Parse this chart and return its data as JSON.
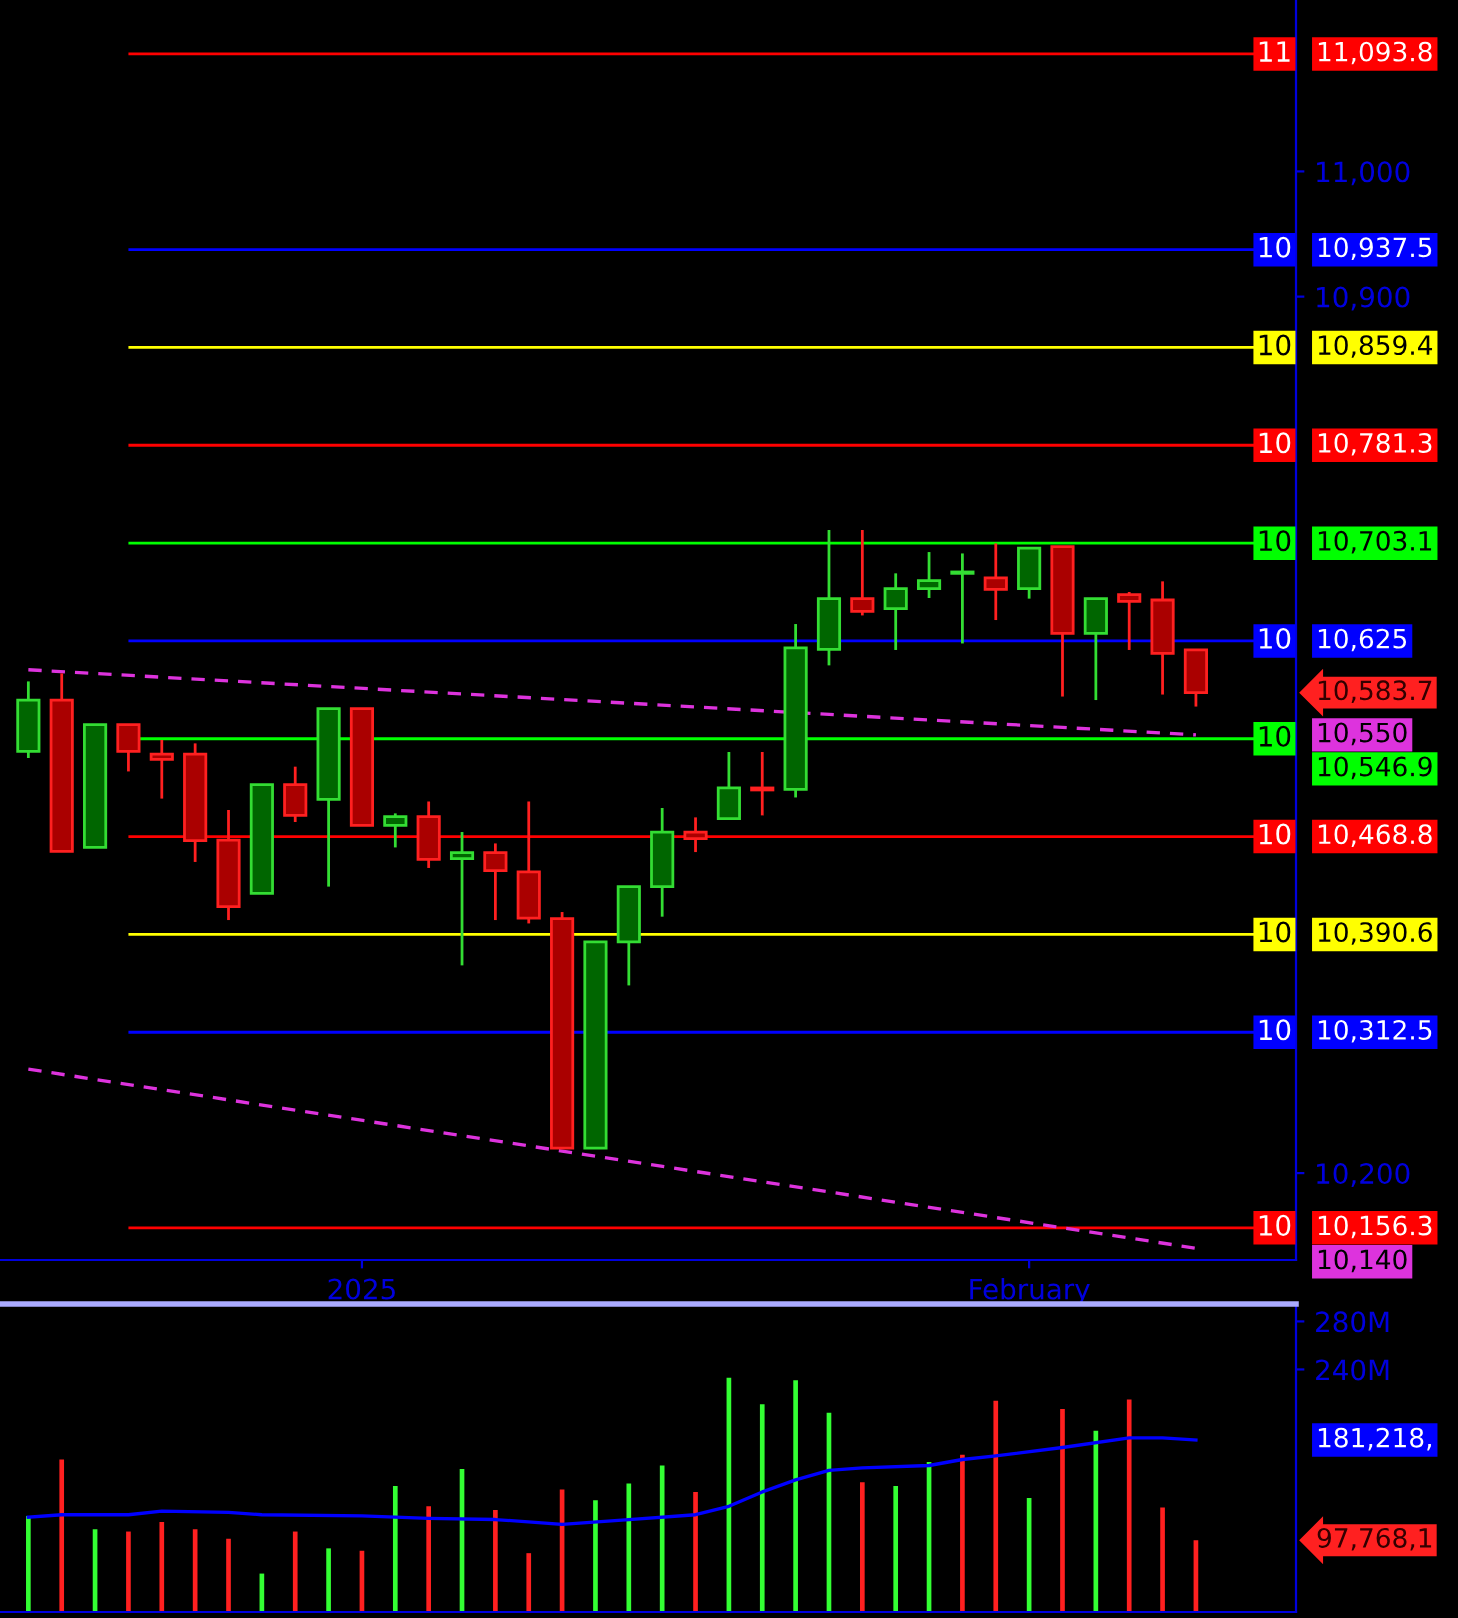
{
  "chart_data": [
    {
      "type": "candlestick",
      "categories": [
        null,
        null,
        null,
        null,
        null,
        null,
        null,
        null,
        null,
        null,
        "2025",
        null,
        null,
        null,
        null,
        null,
        null,
        null,
        null,
        null,
        null,
        null,
        null,
        null,
        null,
        null,
        null,
        null,
        null,
        null,
        "February",
        null,
        null,
        null,
        null,
        null
      ],
      "ohlc": [
        [
          10536.8,
          10592.7,
          10531.5,
          10577.8
        ],
        [
          10577.8,
          10599.1,
          10456.9,
          10456.9
        ],
        [
          10460.1,
          10558.2,
          10460.1,
          10558.2
        ],
        [
          10558.2,
          10558.2,
          10520.8,
          10536.8
        ],
        [
          10534.7,
          10545.9,
          10499.1,
          10530.4
        ],
        [
          10534.7,
          10543.2,
          10448.5,
          10465.5
        ],
        [
          10466.0,
          10490.0,
          10402.1,
          10412.8
        ],
        [
          10423.4,
          10510.3,
          10423.4,
          10510.3
        ],
        [
          10510.3,
          10524.6,
          10480.4,
          10485.7
        ],
        [
          10498.5,
          10571.0,
          10428.8,
          10571.0
        ],
        [
          10571.0,
          10571.0,
          10477.7,
          10477.7
        ],
        [
          10477.7,
          10487.3,
          10460.1,
          10484.7
        ],
        [
          10484.7,
          10496.8,
          10443.7,
          10450.5
        ],
        [
          10451.2,
          10472.4,
          10365.9,
          10456.0
        ],
        [
          10456.0,
          10463.3,
          10402.1,
          10441.6
        ],
        [
          10440.5,
          10496.8,
          10399.4,
          10403.7
        ],
        [
          10403.2,
          10408.5,
          10220.0,
          10220.0
        ],
        [
          10220.0,
          10384.6,
          10220.0,
          10384.6
        ],
        [
          10384.6,
          10428.8,
          10349.9,
          10428.8
        ],
        [
          10428.8,
          10491.6,
          10404.8,
          10472.4
        ],
        [
          10472.4,
          10484.1,
          10456.4,
          10467.1
        ],
        [
          10483.1,
          10536.3,
          10483.1,
          10507.6
        ],
        [
          10507.6,
          10536.3,
          10485.7,
          10506.0
        ],
        [
          10506.4,
          10638.5,
          10500.0,
          10619.4
        ],
        [
          10618.2,
          10713.6,
          10605.5,
          10658.8
        ],
        [
          10658.8,
          10713.6,
          10645.4,
          10648.6
        ],
        [
          10650.8,
          10679.0,
          10617.8,
          10666.8
        ],
        [
          10666.8,
          10696.0,
          10659.3,
          10673.2
        ],
        [
          10679.0,
          10694.9,
          10623.0,
          10680.1
        ],
        [
          10675.3,
          10702.9,
          10641.7,
          10666.2
        ],
        [
          10666.8,
          10699.2,
          10658.8,
          10699.2
        ],
        [
          10700.4,
          10700.4,
          10580.6,
          10631.0
        ],
        [
          10631.0,
          10658.8,
          10577.8,
          10658.8
        ],
        [
          10662.0,
          10664.1,
          10617.8,
          10656.6
        ],
        [
          10657.7,
          10672.6,
          10582.2,
          10615.1
        ],
        [
          10617.8,
          10617.8,
          10572.6,
          10583.7
        ]
      ],
      "series": [
        {
          "type": "line",
          "color": "#dd33dd",
          "line_style": "dashed",
          "values": [
            10602,
            null,
            null,
            null,
            null,
            null,
            null,
            null,
            null,
            null,
            null,
            null,
            null,
            null,
            null,
            null,
            null,
            null,
            null,
            null,
            null,
            null,
            null,
            null,
            null,
            null,
            null,
            null,
            null,
            null,
            null,
            null,
            null,
            null,
            null,
            10550
          ]
        },
        {
          "type": "line",
          "color": "#dd33dd",
          "line_style": "dashed",
          "values": [
            10283,
            null,
            null,
            null,
            null,
            null,
            null,
            null,
            null,
            null,
            null,
            null,
            null,
            null,
            null,
            null,
            null,
            null,
            null,
            null,
            null,
            null,
            null,
            null,
            null,
            null,
            null,
            null,
            null,
            null,
            null,
            null,
            null,
            null,
            null,
            10140
          ]
        }
      ],
      "ref_lines": [
        {
          "axis": "y",
          "value": 11093.8,
          "label": "11,093.8",
          "color": "#ff0000"
        },
        {
          "axis": "y",
          "value": 10937.5,
          "label": "10,937.5",
          "color": "#0000ff"
        },
        {
          "axis": "y",
          "value": 10859.4,
          "label": "10,859.4",
          "color": "#ffff00"
        },
        {
          "axis": "y",
          "value": 10781.3,
          "label": "10,781.3",
          "color": "#ff0000"
        },
        {
          "axis": "y",
          "value": 10703.1,
          "label": "10,703.1",
          "color": "#00ff00"
        },
        {
          "axis": "y",
          "value": 10625,
          "label": "10,625",
          "color": "#0000ff"
        },
        {
          "axis": "y",
          "value": 10546.9,
          "label": "10,546.9",
          "color": "#00ff00"
        },
        {
          "axis": "y",
          "value": 10468.8,
          "label": "10,468.8",
          "color": "#ff0000"
        },
        {
          "axis": "y",
          "value": 10390.6,
          "label": "10,390.6",
          "color": "#ffff00"
        },
        {
          "axis": "y",
          "value": 10312.5,
          "label": "10,312.5",
          "color": "#0000ff"
        },
        {
          "axis": "y",
          "value": 10156.3,
          "label": "10,156.3",
          "color": "#ff0000"
        }
      ],
      "annotations": [
        "11",
        "10",
        "10",
        "10",
        "10",
        "10",
        "10",
        "10",
        "10",
        "10",
        "10",
        "10,550",
        "10,140",
        "10,583.7"
      ],
      "ylim": [
        10130.6,
        11136.9
      ],
      "yticks": [
        {
          "value": 11000,
          "label": "11,000"
        },
        {
          "value": 10900,
          "label": "10,900"
        },
        {
          "value": 10200,
          "label": "10,200"
        }
      ]
    },
    {
      "type": "bar",
      "categories": [
        null,
        null,
        null,
        null,
        null,
        null,
        null,
        null,
        null,
        null,
        null,
        null,
        null,
        null,
        null,
        null,
        null,
        null,
        null,
        null,
        null,
        null,
        null,
        null,
        null,
        null,
        null,
        null,
        null,
        null,
        null,
        null,
        null,
        null,
        null,
        null
      ],
      "series": [
        {
          "type": "bar",
          "values": [
            118,
            165,
            107,
            105,
            113,
            107,
            99,
            70,
            105,
            91,
            89,
            143,
            126,
            157,
            123,
            87,
            140,
            131,
            145,
            160,
            138,
            233,
            211,
            231,
            204,
            146,
            143,
            163,
            169,
            214,
            133,
            207,
            189,
            215,
            125,
            97.768
          ],
          "colors": [
            "#33ff33",
            "#ff2020",
            "#33ff33",
            "#ff2020",
            "#ff2020",
            "#ff2020",
            "#ff2020",
            "#33ff33",
            "#ff2020",
            "#33ff33",
            "#ff2020",
            "#33ff33",
            "#ff2020",
            "#33ff33",
            "#ff2020",
            "#ff2020",
            "#ff2020",
            "#33ff33",
            "#33ff33",
            "#33ff33",
            "#ff2020",
            "#33ff33",
            "#33ff33",
            "#33ff33",
            "#33ff33",
            "#ff2020",
            "#33ff33",
            "#33ff33",
            "#ff2020",
            "#ff2020",
            "#33ff33",
            "#ff2020",
            "#33ff33",
            "#ff2020",
            "#ff2020",
            "#ff2020"
          ]
        },
        {
          "type": "line",
          "color": "#0000ff",
          "values": [
            117,
            119,
            null,
            119,
            122,
            null,
            121,
            119,
            null,
            null,
            118,
            null,
            116,
            null,
            115,
            null,
            111,
            null,
            115,
            null,
            119,
            126,
            138,
            148,
            156,
            158,
            null,
            160,
            165,
            168,
            null,
            175,
            null,
            183,
            183,
            181.218
          ]
        }
      ],
      "annotations": [
        "97,768,1",
        "181,218,"
      ],
      "ylim": [
        38,
        294.5
      ],
      "yticks": [
        {
          "value": 280,
          "label": "280M"
        },
        {
          "value": 240,
          "label": "240M"
        }
      ],
      "tick_labels": "y"
    }
  ]
}
